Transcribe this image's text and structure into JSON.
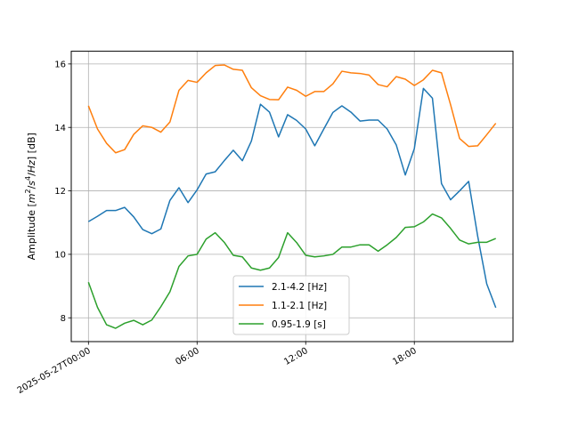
{
  "chart_data": {
    "type": "line",
    "title": "",
    "xlabel": "",
    "ylabel": "Amplitude [m²/s⁴/Hz] [dB]",
    "ylabel_parts": {
      "pre": "Amplitude [",
      "m": "m",
      "sup2": "2",
      "mid": "/",
      "s": "s",
      "sup4": "4",
      "slash": "/",
      "hz": "Hz",
      "post": "] [dB]"
    },
    "xlim_hours": [
      -0.95,
      23.45
    ],
    "ylim": [
      7.25,
      16.4
    ],
    "x_ticks": [
      {
        "hour": 0,
        "label": "2025-05-27T00:00"
      },
      {
        "hour": 6,
        "label": "06:00"
      },
      {
        "hour": 12,
        "label": "12:00"
      },
      {
        "hour": 18,
        "label": "18:00"
      }
    ],
    "y_ticks": [
      8,
      10,
      12,
      14,
      16
    ],
    "grid": true,
    "legend_position": "bottom-center",
    "x_hours": [
      0,
      0.5,
      1,
      1.5,
      2,
      2.5,
      3,
      3.5,
      4,
      4.5,
      5,
      5.5,
      6,
      6.5,
      7,
      7.5,
      8,
      8.5,
      9,
      9.5,
      10,
      10.5,
      11,
      11.5,
      12,
      12.5,
      13,
      13.5,
      14,
      14.5,
      15,
      15.5,
      16,
      16.5,
      17,
      17.5,
      18,
      18.5,
      19,
      19.5,
      20,
      20.5,
      21,
      21.5,
      22,
      22.5
    ],
    "series": [
      {
        "name": "2.1-4.2 [Hz]",
        "color": "#1f77b4",
        "values": [
          11.03,
          11.2,
          11.38,
          11.38,
          11.48,
          11.18,
          10.78,
          10.65,
          10.8,
          11.7,
          12.1,
          11.63,
          12.03,
          12.53,
          12.6,
          12.95,
          13.28,
          12.95,
          13.57,
          14.73,
          14.48,
          13.7,
          14.4,
          14.22,
          13.95,
          13.42,
          13.95,
          14.47,
          14.68,
          14.48,
          14.2,
          14.23,
          14.23,
          13.95,
          13.45,
          12.5,
          13.33,
          15.23,
          14.92,
          12.23,
          11.72,
          12.0,
          12.3,
          10.57,
          9.07,
          8.32
        ]
      },
      {
        "name": "1.1-2.1 [Hz]",
        "color": "#ff7f0e",
        "values": [
          14.68,
          13.95,
          13.5,
          13.2,
          13.3,
          13.78,
          14.05,
          14.0,
          13.85,
          14.17,
          15.17,
          15.48,
          15.42,
          15.72,
          15.95,
          15.97,
          15.83,
          15.8,
          15.25,
          15.0,
          14.88,
          14.87,
          15.27,
          15.17,
          14.98,
          15.13,
          15.13,
          15.37,
          15.77,
          15.72,
          15.7,
          15.65,
          15.35,
          15.28,
          15.6,
          15.52,
          15.32,
          15.5,
          15.8,
          15.72,
          14.72,
          13.65,
          13.4,
          13.42,
          13.77,
          14.13
        ]
      },
      {
        "name": "0.95-1.9 [s]",
        "color": "#2ca02c",
        "values": [
          9.12,
          8.33,
          7.78,
          7.67,
          7.83,
          7.92,
          7.78,
          7.93,
          8.35,
          8.82,
          9.62,
          9.95,
          10.0,
          10.48,
          10.68,
          10.38,
          9.97,
          9.92,
          9.57,
          9.5,
          9.57,
          9.9,
          10.68,
          10.37,
          9.97,
          9.92,
          9.95,
          10.0,
          10.23,
          10.23,
          10.3,
          10.3,
          10.1,
          10.3,
          10.53,
          10.85,
          10.87,
          11.02,
          11.27,
          11.15,
          10.82,
          10.45,
          10.33,
          10.38,
          10.38,
          10.5
        ]
      }
    ]
  }
}
